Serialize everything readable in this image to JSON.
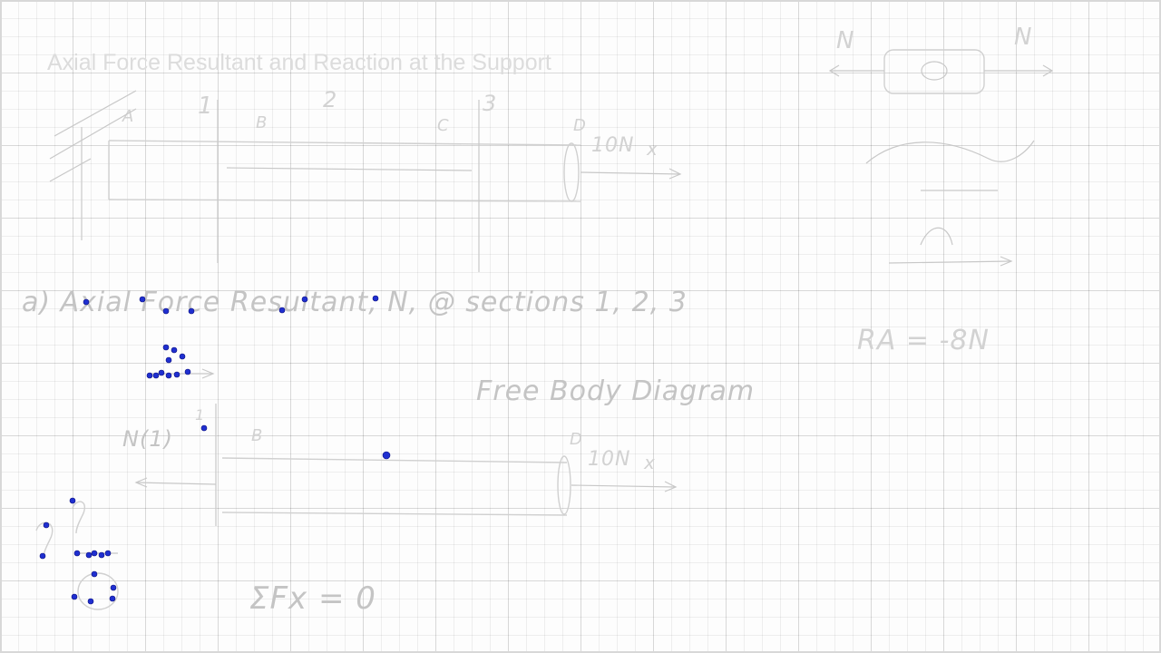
{
  "title": "Axial Force Resultant and Reaction at the Support",
  "top_labels": {
    "section_1": "1",
    "section_2": "2",
    "section_3": "3",
    "point_a": "A",
    "point_b": "B",
    "point_c": "C",
    "point_d": "D",
    "load": "10N",
    "load_axis": "x"
  },
  "right_panel": {
    "n_left": "N",
    "n_right": "N",
    "reaction_result": "RA = -8N"
  },
  "step_heading": "a) Axial Force Resultant, N, @ sections 1, 2, 3",
  "fbd_label": "Free Body Diagram",
  "lower_labels": {
    "n_one": "N(1)",
    "section_1": "1",
    "point_b": "B",
    "point_d": "D",
    "load": "10N",
    "load_axis": "x"
  },
  "equation": "ΣFx = 0",
  "colors": {
    "board": "#fdfdfd",
    "grid": "#e6e6e6",
    "ink_faint": "#d2d2d2",
    "pen_dot": "#1f2fd0"
  }
}
